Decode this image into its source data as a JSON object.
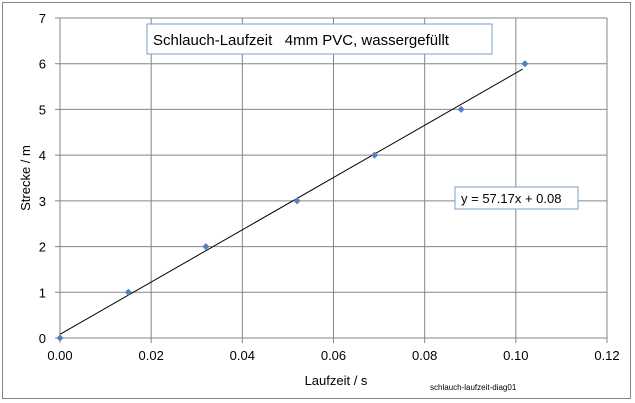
{
  "chart_data": {
    "type": "scatter",
    "title": "Schlauch-Laufzeit   4mm PVC, wassergefüllt",
    "xlabel": "Laufzeit / s",
    "ylabel": "Strecke / m",
    "xlim": [
      0,
      0.12
    ],
    "ylim": [
      0,
      7
    ],
    "xticks": [
      0,
      0.02,
      0.04,
      0.06,
      0.08,
      0.1,
      0.12
    ],
    "xtick_labels": [
      "0.00",
      "0.02",
      "0.04",
      "0.06",
      "0.08",
      "0.10",
      "0.12"
    ],
    "yticks": [
      0,
      1,
      2,
      3,
      4,
      5,
      6,
      7
    ],
    "ytick_labels": [
      "0",
      "1",
      "2",
      "3",
      "4",
      "5",
      "6",
      "7"
    ],
    "grid": true,
    "series": [
      {
        "color": "#4f81bd",
        "x": [
          0.0,
          0.015,
          0.032,
          0.052,
          0.069,
          0.088,
          0.102
        ],
        "y": [
          0,
          1,
          2,
          3,
          4,
          5,
          6
        ]
      }
    ],
    "trendline": {
      "slope": 57.17,
      "intercept": 0.08,
      "x_range": [
        0,
        0.1015
      ],
      "color": "#000000",
      "equation_label": "y = 57.17x + 0.08"
    },
    "footnote": "schlauch-laufzeit-diag01"
  }
}
